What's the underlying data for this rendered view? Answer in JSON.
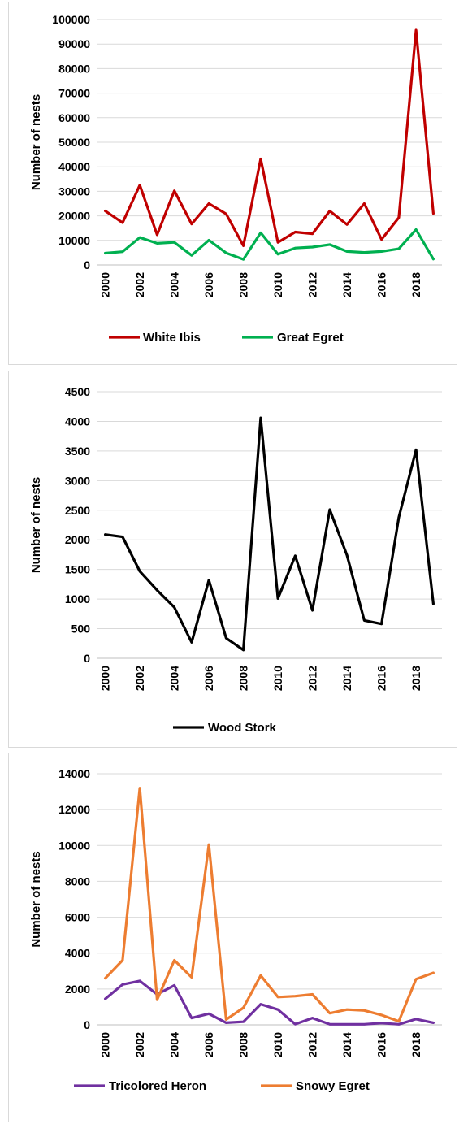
{
  "chart_data": [
    {
      "type": "line",
      "ylabel": "Number of nests",
      "xlabel": "",
      "x": [
        2000,
        2001,
        2002,
        2003,
        2004,
        2005,
        2006,
        2007,
        2008,
        2009,
        2010,
        2011,
        2012,
        2013,
        2014,
        2015,
        2016,
        2017,
        2018,
        2019
      ],
      "x_tick_labels": [
        "2000",
        "2002",
        "2004",
        "2006",
        "2008",
        "2010",
        "2012",
        "2014",
        "2016",
        "2018"
      ],
      "y_tick_labels": [
        "0",
        "10000",
        "20000",
        "30000",
        "40000",
        "50000",
        "60000",
        "70000",
        "80000",
        "90000",
        "100000"
      ],
      "ylim": [
        0,
        100000
      ],
      "grid": true,
      "legend_position": "bottom",
      "series": [
        {
          "name": "White Ibis",
          "color": "#c00000",
          "values": [
            22000,
            17200,
            32500,
            12300,
            30200,
            16700,
            25000,
            20800,
            7800,
            43200,
            9200,
            13400,
            12700,
            22000,
            16500,
            25000,
            10400,
            19300,
            95700,
            21000
          ]
        },
        {
          "name": "Great Egret",
          "color": "#00b050",
          "values": [
            4800,
            5400,
            11200,
            8800,
            9200,
            3900,
            10100,
            4900,
            2300,
            13100,
            4400,
            6900,
            7300,
            8300,
            5500,
            5100,
            5500,
            6600,
            14400,
            2400
          ]
        }
      ]
    },
    {
      "type": "line",
      "ylabel": "Number of nests",
      "xlabel": "",
      "x": [
        2000,
        2001,
        2002,
        2003,
        2004,
        2005,
        2006,
        2007,
        2008,
        2009,
        2010,
        2011,
        2012,
        2013,
        2014,
        2015,
        2016,
        2017,
        2018,
        2019
      ],
      "x_tick_labels": [
        "2000",
        "2002",
        "2004",
        "2006",
        "2008",
        "2010",
        "2012",
        "2014",
        "2016",
        "2018"
      ],
      "y_tick_labels": [
        "0",
        "500",
        "1000",
        "1500",
        "2000",
        "2500",
        "3000",
        "3500",
        "4000",
        "4500"
      ],
      "ylim": [
        0,
        4500
      ],
      "grid": true,
      "legend_position": "bottom",
      "series": [
        {
          "name": "Wood Stork",
          "color": "#000000",
          "values": [
            2090,
            2050,
            1470,
            1150,
            860,
            270,
            1320,
            340,
            140,
            4060,
            1010,
            1730,
            810,
            2510,
            1740,
            640,
            580,
            2380,
            3520,
            920
          ]
        }
      ]
    },
    {
      "type": "line",
      "ylabel": "Number of nests",
      "xlabel": "",
      "x": [
        2000,
        2001,
        2002,
        2003,
        2004,
        2005,
        2006,
        2007,
        2008,
        2009,
        2010,
        2011,
        2012,
        2013,
        2014,
        2015,
        2016,
        2017,
        2018,
        2019
      ],
      "x_tick_labels": [
        "2000",
        "2002",
        "2004",
        "2006",
        "2008",
        "2010",
        "2012",
        "2014",
        "2016",
        "2018"
      ],
      "y_tick_labels": [
        "0",
        "2000",
        "4000",
        "6000",
        "8000",
        "10000",
        "12000",
        "14000"
      ],
      "ylim": [
        0,
        14000
      ],
      "grid": true,
      "legend_position": "bottom",
      "series": [
        {
          "name": "Tricolored Heron",
          "color": "#7030a0",
          "values": [
            1450,
            2250,
            2450,
            1700,
            2200,
            380,
            620,
            120,
            170,
            1150,
            850,
            40,
            380,
            30,
            30,
            30,
            100,
            30,
            320,
            120
          ]
        },
        {
          "name": "Snowy Egret",
          "color": "#ed7d31",
          "values": [
            2600,
            3600,
            13200,
            1400,
            3600,
            2650,
            10050,
            300,
            950,
            2750,
            1550,
            1600,
            1700,
            650,
            850,
            800,
            550,
            200,
            2550,
            2900
          ]
        }
      ]
    }
  ]
}
